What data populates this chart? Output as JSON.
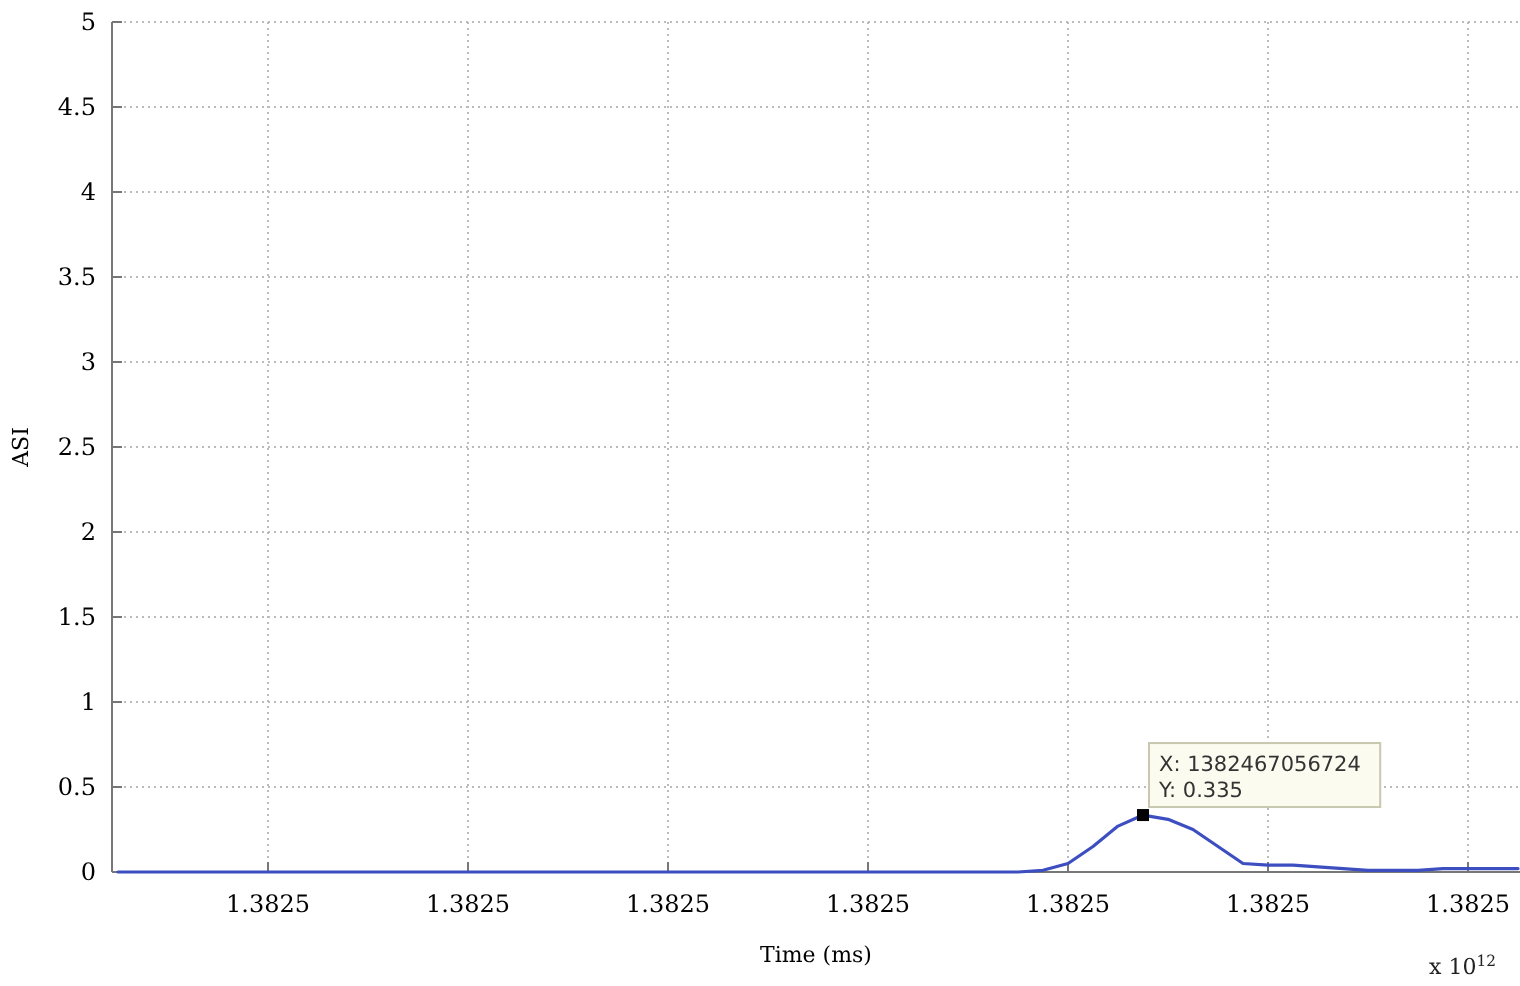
{
  "chart_data": {
    "type": "line",
    "xlabel": "Time (ms)",
    "ylabel": "ASI",
    "categories": [
      null,
      null,
      null,
      null,
      null,
      null,
      "1.3825",
      null,
      null,
      null,
      null,
      null,
      null,
      null,
      "1.3825",
      null,
      null,
      null,
      null,
      null,
      null,
      null,
      "1.3825",
      null,
      null,
      null,
      null,
      null,
      null,
      null,
      "1.3825",
      null,
      null,
      null,
      null,
      null,
      null,
      null,
      "1.3825",
      null,
      null,
      null,
      null,
      null,
      null,
      null,
      "1.3825",
      null,
      null,
      null,
      null,
      null,
      null,
      null,
      "1.3825",
      null,
      null
    ],
    "series": [
      {
        "color": "#3d4fc0",
        "values": [
          0,
          0,
          0,
          0,
          0,
          0,
          0,
          0,
          0,
          0,
          0,
          0,
          0,
          0,
          0,
          0,
          0,
          0,
          0,
          0,
          0,
          0,
          0,
          0,
          0,
          0,
          0,
          0,
          0,
          0,
          0,
          0,
          0,
          0,
          0,
          0,
          0,
          0.01,
          0.05,
          0.15,
          0.27,
          0.335,
          0.31,
          0.25,
          0.15,
          0.05,
          0.04,
          0.04,
          0.03,
          0.02,
          0.01,
          0.01,
          0.01,
          0.02,
          0.02,
          0.02,
          0.02
        ]
      }
    ],
    "ylim": [
      0,
      5
    ],
    "yticks": [
      0,
      0.5,
      1,
      1.5,
      2,
      2.5,
      3,
      3.5,
      4,
      4.5,
      5
    ],
    "grid": true,
    "marker": "none",
    "line_style": "solid",
    "annotations": [
      "X: 1382467056724\nY: 0.335",
      "x 10$^{12}$"
    ]
  }
}
